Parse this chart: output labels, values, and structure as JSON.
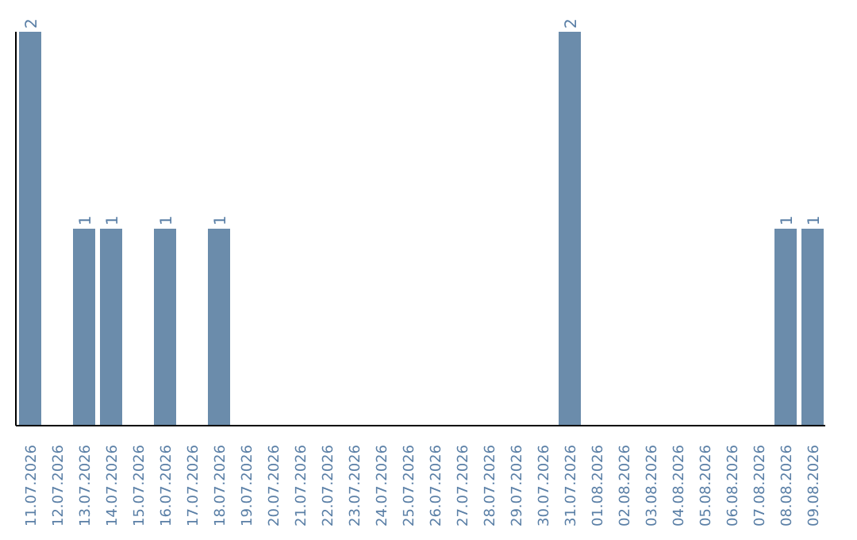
{
  "chart_data": {
    "type": "bar",
    "categories": [
      "11.07.2026",
      "12.07.2026",
      "13.07.2026",
      "14.07.2026",
      "15.07.2026",
      "16.07.2026",
      "17.07.2026",
      "18.07.2026",
      "19.07.2026",
      "20.07.2026",
      "21.07.2026",
      "22.07.2026",
      "23.07.2026",
      "24.07.2026",
      "25.07.2026",
      "26.07.2026",
      "27.07.2026",
      "28.07.2026",
      "29.07.2026",
      "30.07.2026",
      "31.07.2026",
      "01.08.2026",
      "02.08.2026",
      "03.08.2026",
      "04.08.2026",
      "05.08.2026",
      "06.08.2026",
      "07.08.2026",
      "08.08.2026",
      "09.08.2026"
    ],
    "values": [
      2,
      0,
      1,
      1,
      0,
      1,
      0,
      1,
      0,
      0,
      0,
      0,
      0,
      0,
      0,
      0,
      0,
      0,
      0,
      0,
      2,
      0,
      0,
      0,
      0,
      0,
      0,
      0,
      1,
      1
    ],
    "value_labels": [
      "2",
      null,
      "1",
      "1",
      null,
      "1",
      null,
      "1",
      null,
      null,
      null,
      null,
      null,
      null,
      null,
      null,
      null,
      null,
      null,
      null,
      "2",
      null,
      null,
      null,
      null,
      null,
      null,
      null,
      "1",
      "1"
    ],
    "color": "#6b8cab",
    "ylim": [
      0,
      2
    ],
    "tick_labels": "x",
    "grid": false,
    "legend": false
  }
}
